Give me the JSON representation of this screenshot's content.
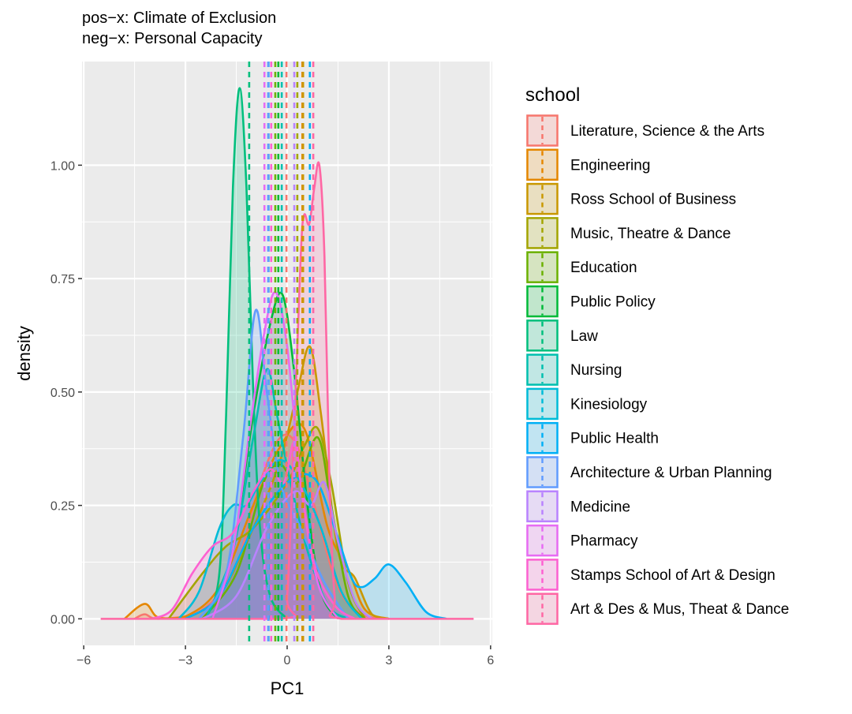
{
  "chart_data": {
    "type": "area",
    "subtitle_lines": [
      "pos−x: Climate of Exclusion",
      "neg−x: Personal Capacity"
    ],
    "xlabel": "PC1",
    "ylabel": "density",
    "xlim": [
      -6.05,
      6.05
    ],
    "ylim": [
      -0.0585,
      1.2285
    ],
    "xticks": [
      -6,
      -3,
      0,
      3,
      6
    ],
    "xtick_labels": [
      "−6",
      "−3",
      "0",
      "3",
      "6"
    ],
    "yticks": [
      0,
      0.25,
      0.5,
      0.75,
      1.0
    ],
    "ytick_labels": [
      "0.00",
      "0.25",
      "0.50",
      "0.75",
      "1.00"
    ],
    "grid": true,
    "legend": {
      "title": "school",
      "placement": "right"
    },
    "series": [
      {
        "name": "Literature, Science & the Arts",
        "color": "#F8766D",
        "mean": -0.02,
        "points": [
          [
            -4.5,
            0
          ],
          [
            -4.2,
            0.01
          ],
          [
            -3.8,
            0
          ],
          [
            -2.5,
            0.02
          ],
          [
            -1.5,
            0.12
          ],
          [
            -0.8,
            0.3
          ],
          [
            -0.2,
            0.4
          ],
          [
            0.3,
            0.38
          ],
          [
            0.8,
            0.25
          ],
          [
            1.5,
            0.07
          ],
          [
            2.2,
            0.01
          ],
          [
            3,
            0
          ]
        ]
      },
      {
        "name": "Engineering",
        "color": "#E58700",
        "mean": 0.45,
        "points": [
          [
            -4.8,
            0
          ],
          [
            -4.2,
            0.033
          ],
          [
            -3.8,
            0.003
          ],
          [
            -3,
            0.005
          ],
          [
            -2,
            0.07
          ],
          [
            -1,
            0.25
          ],
          [
            -0.2,
            0.38
          ],
          [
            0.5,
            0.42
          ],
          [
            1.2,
            0.2
          ],
          [
            1.8,
            0.11
          ],
          [
            2.3,
            0.02
          ],
          [
            3,
            0
          ]
        ]
      },
      {
        "name": "Ross School of Business",
        "color": "#C99800",
        "mean": 0.47,
        "points": [
          [
            -3,
            0
          ],
          [
            -2,
            0.05
          ],
          [
            -1,
            0.2
          ],
          [
            -0.2,
            0.35
          ],
          [
            0.3,
            0.5
          ],
          [
            0.67,
            0.6
          ],
          [
            1,
            0.45
          ],
          [
            1.5,
            0.15
          ],
          [
            2,
            0.09
          ],
          [
            2.5,
            0.01
          ],
          [
            3,
            0
          ]
        ]
      },
      {
        "name": "Music, Theatre & Dance",
        "color": "#A3A500",
        "mean": 0.3,
        "points": [
          [
            -3.5,
            0
          ],
          [
            -2.5,
            0.1
          ],
          [
            -1.8,
            0.16
          ],
          [
            -1,
            0.2
          ],
          [
            0,
            0.3
          ],
          [
            0.5,
            0.38
          ],
          [
            0.9,
            0.42
          ],
          [
            1.3,
            0.3
          ],
          [
            1.8,
            0.08
          ],
          [
            2.3,
            0
          ]
        ]
      },
      {
        "name": "Education",
        "color": "#6BB100",
        "mean": -0.35,
        "points": [
          [
            -2.5,
            0
          ],
          [
            -1.5,
            0.1
          ],
          [
            -0.7,
            0.3
          ],
          [
            -0.2,
            0.34
          ],
          [
            0.3,
            0.3
          ],
          [
            0.9,
            0.4
          ],
          [
            1.3,
            0.25
          ],
          [
            1.8,
            0.05
          ],
          [
            2.3,
            0
          ]
        ]
      },
      {
        "name": "Public Policy",
        "color": "#00BA38",
        "mean": -0.26,
        "points": [
          [
            -2.2,
            0
          ],
          [
            -1.6,
            0.15
          ],
          [
            -1.0,
            0.45
          ],
          [
            -0.5,
            0.65
          ],
          [
            -0.14,
            0.715
          ],
          [
            0.2,
            0.55
          ],
          [
            0.6,
            0.25
          ],
          [
            1,
            0.06
          ],
          [
            1.5,
            0
          ]
        ]
      },
      {
        "name": "Law",
        "color": "#00BF7D",
        "mean": -1.12,
        "points": [
          [
            -2.4,
            0
          ],
          [
            -2,
            0.1
          ],
          [
            -1.8,
            0.45
          ],
          [
            -1.6,
            0.95
          ],
          [
            -1.4,
            1.17
          ],
          [
            -1.2,
            0.95
          ],
          [
            -1,
            0.5
          ],
          [
            -0.8,
            0.2
          ],
          [
            -0.5,
            0.05
          ],
          [
            0,
            0
          ]
        ]
      },
      {
        "name": "Nursing",
        "color": "#00C0AF",
        "mean": -0.16,
        "points": [
          [
            -2.4,
            0
          ],
          [
            -1.6,
            0.15
          ],
          [
            -1,
            0.4
          ],
          [
            -0.6,
            0.55
          ],
          [
            -0.3,
            0.45
          ],
          [
            0.1,
            0.3
          ],
          [
            0.6,
            0.15
          ],
          [
            1.2,
            0.03
          ],
          [
            1.8,
            0
          ]
        ]
      },
      {
        "name": "Kinesiology",
        "color": "#00BCD8",
        "mean": -0.55,
        "points": [
          [
            -3.2,
            0
          ],
          [
            -2.6,
            0.06
          ],
          [
            -2,
            0.2
          ],
          [
            -1.6,
            0.25
          ],
          [
            -1.2,
            0.25
          ],
          [
            -0.8,
            0.3
          ],
          [
            -0.2,
            0.35
          ],
          [
            0.4,
            0.3
          ],
          [
            1,
            0.2
          ],
          [
            1.6,
            0.06
          ],
          [
            2.2,
            0
          ]
        ]
      },
      {
        "name": "Public Health",
        "color": "#00B0F6",
        "mean": 0.67,
        "points": [
          [
            -3,
            0
          ],
          [
            -2,
            0.05
          ],
          [
            -1,
            0.2
          ],
          [
            0,
            0.3
          ],
          [
            0.8,
            0.31
          ],
          [
            1.4,
            0.2
          ],
          [
            1.9,
            0.09
          ],
          [
            2.2,
            0.07
          ],
          [
            2.6,
            0.09
          ],
          [
            3,
            0.12
          ],
          [
            3.5,
            0.08
          ],
          [
            4.1,
            0.015
          ],
          [
            4.7,
            0
          ]
        ]
      },
      {
        "name": "Architecture & Urban Planning",
        "color": "#619CFF",
        "mean": -0.56,
        "points": [
          [
            -2.6,
            0
          ],
          [
            -1.8,
            0.1
          ],
          [
            -1.3,
            0.4
          ],
          [
            -0.93,
            0.68
          ],
          [
            -0.6,
            0.5
          ],
          [
            -0.2,
            0.3
          ],
          [
            0.4,
            0.2
          ],
          [
            1.1,
            0.08
          ],
          [
            1.8,
            0
          ]
        ]
      },
      {
        "name": "Medicine",
        "color": "#B983FF",
        "mean": 0.21,
        "points": [
          [
            -2.5,
            0
          ],
          [
            -1.5,
            0.05
          ],
          [
            -0.6,
            0.2
          ],
          [
            0.2,
            0.28
          ],
          [
            0.7,
            0.25
          ],
          [
            1.1,
            0.3
          ],
          [
            1.5,
            0.17
          ],
          [
            2,
            0.04
          ],
          [
            2.5,
            0
          ]
        ]
      },
      {
        "name": "Pharmacy",
        "color": "#E76BF3",
        "mean": -0.67,
        "points": [
          [
            -2.2,
            0
          ],
          [
            -1.6,
            0.15
          ],
          [
            -1.1,
            0.42
          ],
          [
            -0.7,
            0.62
          ],
          [
            -0.35,
            0.72
          ],
          [
            0,
            0.6
          ],
          [
            0.4,
            0.3
          ],
          [
            0.9,
            0.08
          ],
          [
            1.5,
            0
          ]
        ]
      },
      {
        "name": "Stamps School of Art & Design",
        "color": "#FD61D1",
        "mean": -0.47,
        "points": [
          [
            -4,
            0
          ],
          [
            -3.4,
            0.02
          ],
          [
            -2.8,
            0.1
          ],
          [
            -2.2,
            0.16
          ],
          [
            -1.6,
            0.19
          ],
          [
            -1,
            0.28
          ],
          [
            -0.5,
            0.33
          ],
          [
            -0.1,
            0.3
          ],
          [
            0.2,
            0.39
          ],
          [
            0.4,
            0.3
          ],
          [
            0.8,
            0.12
          ],
          [
            1.4,
            0.03
          ],
          [
            2,
            0
          ]
        ]
      },
      {
        "name": "Art & Des & Mus, Theat & Dance",
        "color": "#FF67A4",
        "mean": 0.77,
        "points": [
          [
            -5.5,
            0
          ],
          [
            -0.2,
            0
          ],
          [
            0,
            0.05
          ],
          [
            0.2,
            0.4
          ],
          [
            0.4,
            0.8
          ],
          [
            0.5,
            0.89
          ],
          [
            0.65,
            0.87
          ],
          [
            0.8,
            0.95
          ],
          [
            0.95,
            1.0
          ],
          [
            1.1,
            0.8
          ],
          [
            1.25,
            0.3
          ],
          [
            1.4,
            0.05
          ],
          [
            1.6,
            0
          ],
          [
            5.5,
            0
          ]
        ]
      }
    ]
  }
}
